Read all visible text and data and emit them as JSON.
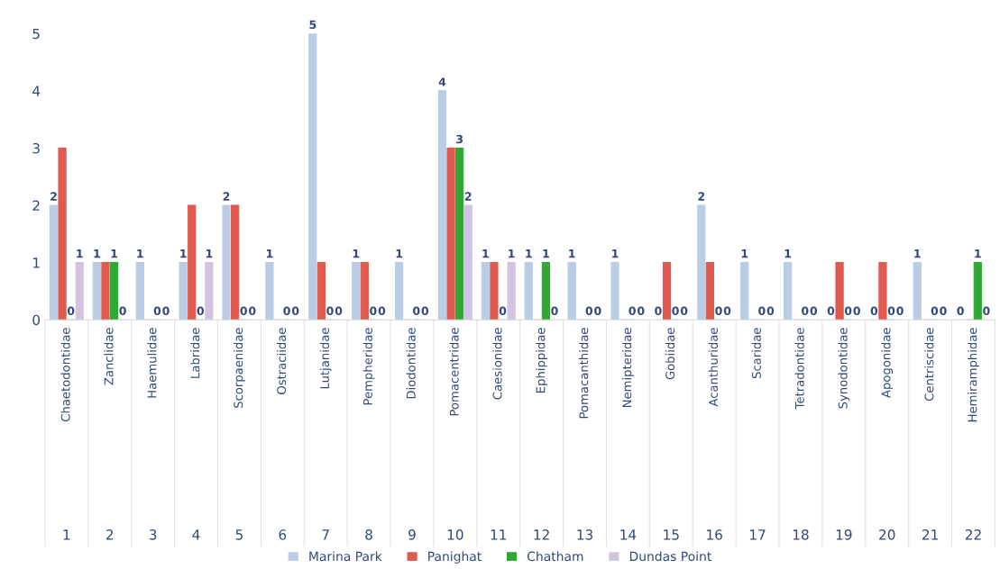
{
  "chart_data": {
    "type": "bar",
    "categories": [
      "Chaetodontidae",
      "Zanclidae",
      "Haemulidae",
      "Labridae",
      "Scorpaenidae",
      "Ostraciidae",
      "Lutjanidae",
      "Pempheridae",
      "Diodontidae",
      "Pomacentridae",
      "Caesionidae",
      "Ephippidae",
      "Pomacanthidae",
      "Nemipteridae",
      "Gobiidae",
      "Acanthuridae",
      "Scaridae",
      "Tetradontidae",
      "Synodontidae",
      "Apogonidae",
      "Centriscidae",
      "Hemiramphidae"
    ],
    "series": [
      {
        "name": "Marina Park",
        "color": "#b9cde5",
        "values": [
          2,
          1,
          1,
          1,
          2,
          1,
          5,
          1,
          1,
          4,
          1,
          1,
          1,
          1,
          0,
          2,
          1,
          1,
          0,
          0,
          1,
          0
        ],
        "value_labels": [
          "2",
          "1",
          "1",
          "1",
          "2",
          "1",
          "5",
          "1",
          "1",
          "4",
          "1",
          "1",
          "1",
          "1",
          "0",
          "2",
          "1",
          "1",
          "0",
          "0",
          "1",
          "0"
        ]
      },
      {
        "name": "Panighat",
        "color": "#e05a4f",
        "values": [
          3,
          1,
          0,
          2,
          2,
          0,
          1,
          1,
          0,
          3,
          1,
          0,
          0,
          0,
          1,
          1,
          0,
          0,
          1,
          1,
          0,
          0
        ]
      },
      {
        "name": "Chatham",
        "color": "#2fa834",
        "values": [
          0,
          1,
          0,
          0,
          0,
          0,
          0,
          0,
          0,
          3,
          0,
          1,
          0,
          0,
          0,
          0,
          0,
          0,
          0,
          0,
          0,
          1
        ],
        "value_labels": [
          "0",
          "1",
          "0",
          "0",
          "0",
          "0",
          "0",
          "0",
          "0",
          "3",
          "0",
          "1",
          "0",
          "0",
          "0",
          "0",
          "0",
          "0",
          "0",
          "0",
          "0",
          "1"
        ]
      },
      {
        "name": "Dundas Point",
        "color": "#d2c4e0",
        "values": [
          1,
          0,
          0,
          1,
          0,
          0,
          0,
          0,
          0,
          2,
          1,
          0,
          0,
          0,
          0,
          0,
          0,
          0,
          0,
          0,
          0,
          0
        ],
        "value_labels": [
          "1",
          "0",
          "0",
          "1",
          "0",
          "0",
          "0",
          "0",
          "0",
          "2",
          "1",
          "0",
          "0",
          "0",
          "0",
          "0",
          "0",
          "0",
          "0",
          "0",
          "0",
          "0"
        ]
      }
    ],
    "annotations": [
      "1",
      "2",
      "3",
      "4",
      "5",
      "6",
      "7",
      "8",
      "9",
      "10",
      "11",
      "12",
      "13",
      "14",
      "15",
      "16",
      "17",
      "18",
      "19",
      "20",
      "21",
      "22"
    ],
    "ylim": [
      0,
      5
    ],
    "yticks": [
      0,
      1,
      2,
      3,
      4,
      5
    ],
    "grid": false,
    "legend": "bottom"
  }
}
